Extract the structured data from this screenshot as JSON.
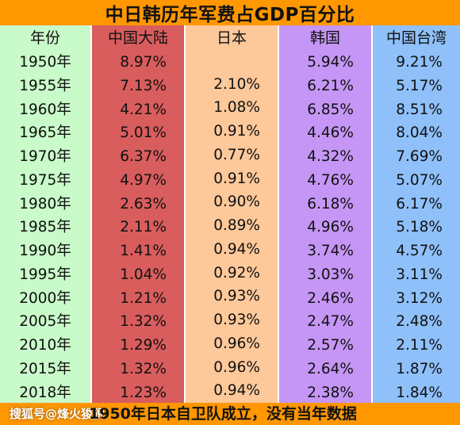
{
  "title": "中日韩历年军费占GDP百分比",
  "footer_note": "1950年日本自卫队成立，没有当年数据",
  "watermark": "搜狐号@烽火狻猊",
  "chart_data": {
    "type": "table",
    "title": "中日韩历年军费占GDP百分比",
    "year_header": "年份",
    "years": [
      "1950年",
      "1955年",
      "1960年",
      "1965年",
      "1970年",
      "1975年",
      "1980年",
      "1985年",
      "1990年",
      "1995年",
      "2000年",
      "2005年",
      "2010年",
      "2015年",
      "2018年"
    ],
    "series": [
      {
        "name": "中国大陆",
        "color": "#d95d5d",
        "values": [
          "8.97%",
          "7.13%",
          "4.21%",
          "5.01%",
          "6.37%",
          "4.97%",
          "2.63%",
          "2.11%",
          "1.41%",
          "1.04%",
          "1.21%",
          "1.32%",
          "1.29%",
          "1.32%",
          "1.23%"
        ]
      },
      {
        "name": "日本",
        "color": "#fdc89a",
        "values": [
          "",
          "2.10%",
          "1.08%",
          "0.91%",
          "0.77%",
          "0.91%",
          "0.90%",
          "0.89%",
          "0.94%",
          "0.92%",
          "0.93%",
          "0.93%",
          "0.96%",
          "0.96%",
          "0.94%"
        ]
      },
      {
        "name": "韩国",
        "color": "#c596f5",
        "values": [
          "5.94%",
          "6.21%",
          "6.85%",
          "4.46%",
          "4.32%",
          "4.76%",
          "6.18%",
          "4.96%",
          "3.74%",
          "3.03%",
          "2.46%",
          "2.47%",
          "2.57%",
          "2.64%",
          "2.38%"
        ]
      },
      {
        "name": "中国台湾",
        "color": "#8fc0f9",
        "values": [
          "9.21%",
          "5.17%",
          "8.51%",
          "8.04%",
          "7.69%",
          "5.07%",
          "6.17%",
          "5.18%",
          "4.57%",
          "3.11%",
          "3.12%",
          "2.48%",
          "2.11%",
          "1.87%",
          "1.84%"
        ]
      }
    ],
    "year_column_color": "#c9fac9"
  }
}
